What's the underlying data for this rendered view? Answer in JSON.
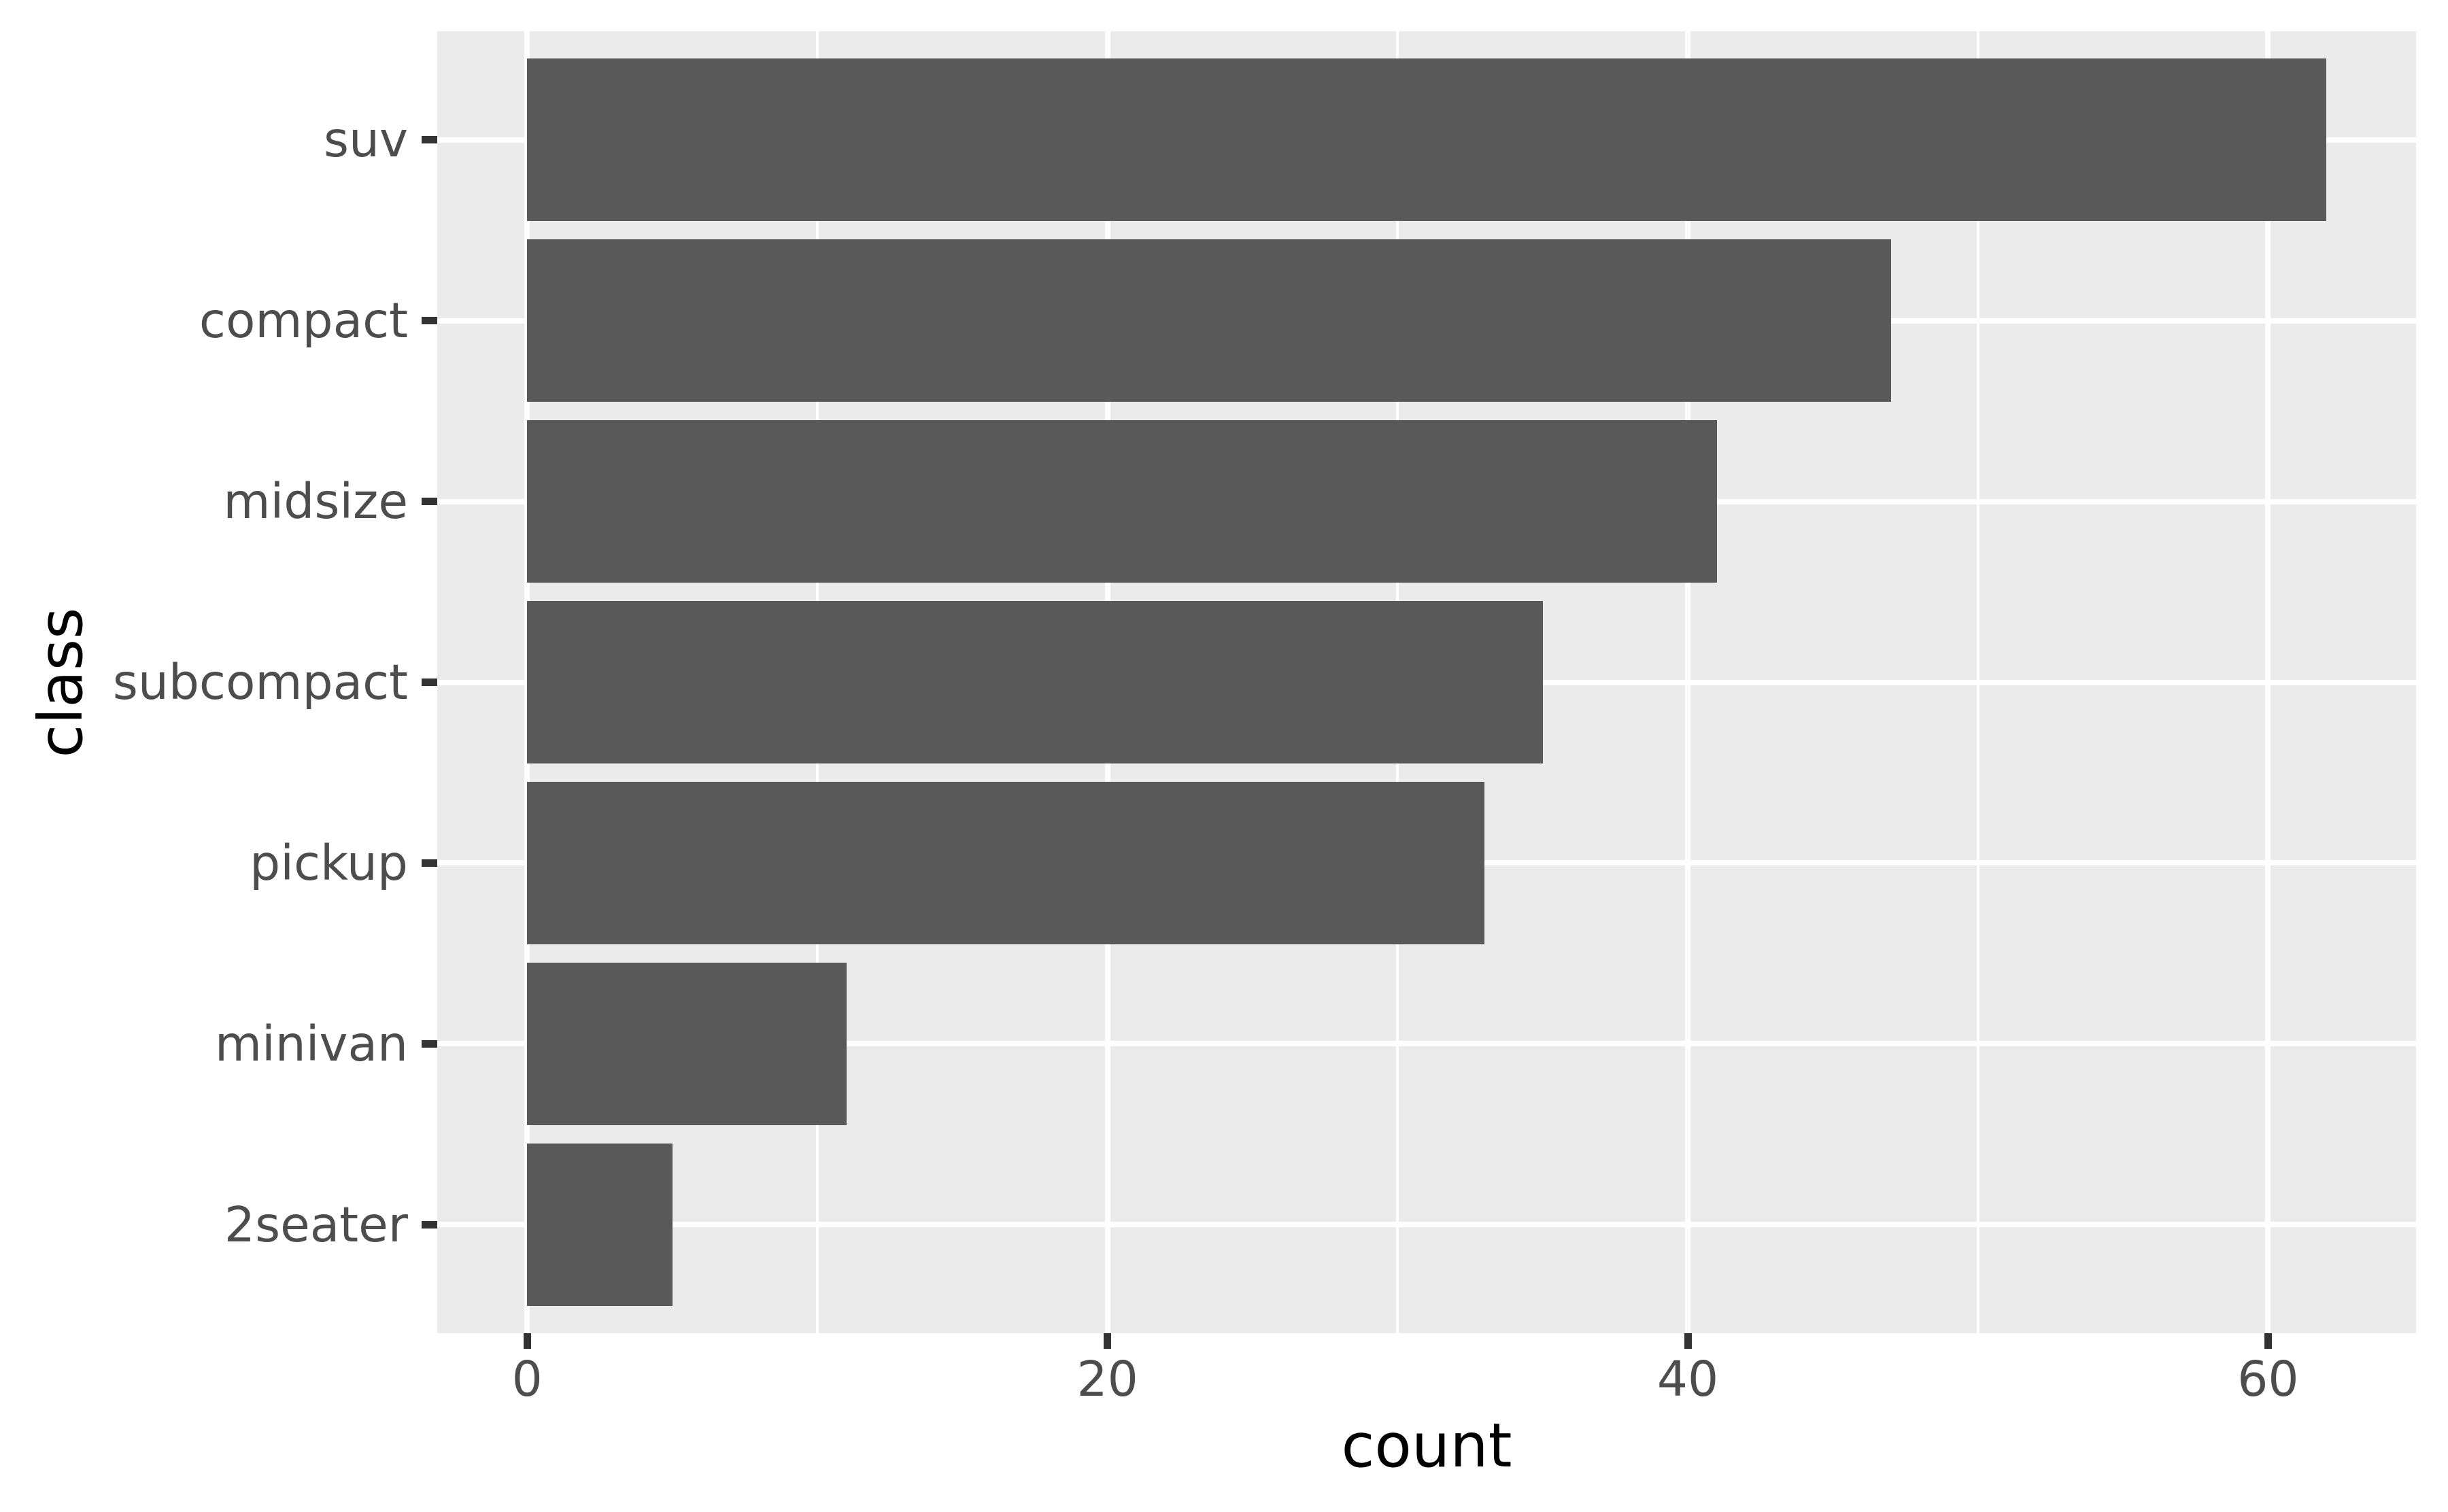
{
  "figure": {
    "background": "#FFFFFF",
    "panel_background": "#EBEBEB",
    "grid_color": "#FFFFFF",
    "bar_color": "#595959",
    "tick_mark_color": "#333333",
    "tick_label_color": "#4D4D4D",
    "axis_title_color": "#000000"
  },
  "chart_data": {
    "type": "bar",
    "orientation": "horizontal",
    "title": "",
    "xlabel": "count",
    "ylabel": "class",
    "categories": [
      "suv",
      "compact",
      "midsize",
      "subcompact",
      "pickup",
      "minivan",
      "2seater"
    ],
    "values": [
      62,
      47,
      41,
      35,
      33,
      11,
      5
    ],
    "x_ticks": [
      0,
      20,
      40,
      60
    ],
    "x_minor_ticks": [
      10,
      30,
      50
    ],
    "xlim": [
      0,
      62
    ],
    "grid": true,
    "legend": false,
    "theme": "ggplot-grey"
  }
}
